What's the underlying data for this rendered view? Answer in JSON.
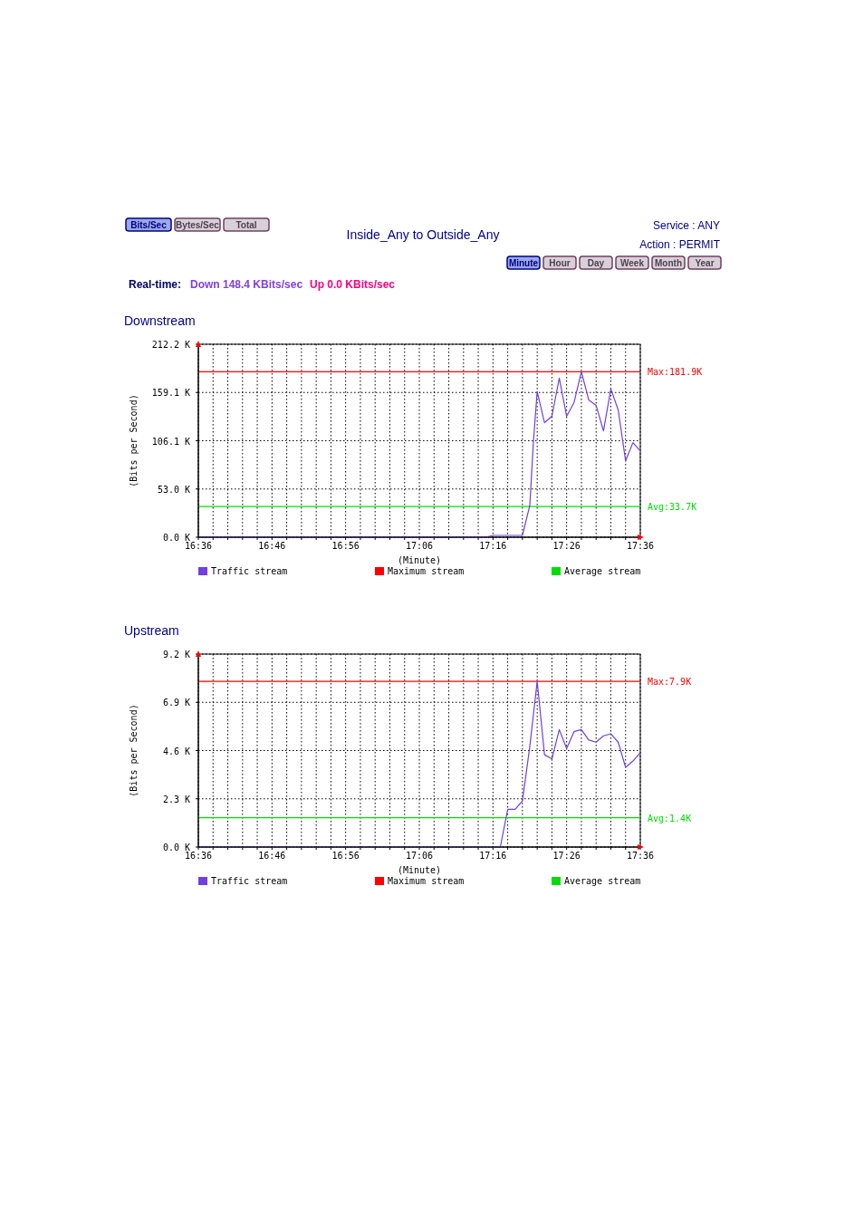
{
  "chart_data": [
    {
      "type": "other",
      "title": "Inside_Any to Outside_Any",
      "annotations": [
        "Bits/Sec",
        "Bytes/Sec",
        "Total",
        "Service : ANY",
        "Action : PERMIT",
        "Minute",
        "Hour",
        "Day",
        "Week",
        "Month",
        "Year",
        "Real-time:",
        "Down 148.4 KBits/sec",
        "Up 0.0 KBits/sec"
      ]
    },
    {
      "type": "line",
      "title": "Downstream",
      "xlabel": "(Minute)",
      "ylabel": "(Bits per Second)",
      "xlim": [
        16.6,
        17.6
      ],
      "ylim": [
        0,
        212.2
      ],
      "xticks": [
        {
          "value": 16.6,
          "label": "16:36"
        },
        {
          "value": 16.6333,
          "label": null
        },
        {
          "value": 16.6667,
          "label": null
        },
        {
          "value": 16.7,
          "label": null
        },
        {
          "value": 16.7333,
          "label": null
        },
        {
          "value": 16.7667,
          "label": "16:46"
        },
        {
          "value": 16.8,
          "label": null
        },
        {
          "value": 16.8333,
          "label": null
        },
        {
          "value": 16.8667,
          "label": null
        },
        {
          "value": 16.9,
          "label": null
        },
        {
          "value": 16.9333,
          "label": "16:56"
        },
        {
          "value": 16.9667,
          "label": null
        },
        {
          "value": 17.0,
          "label": null
        },
        {
          "value": 17.0333,
          "label": null
        },
        {
          "value": 17.0667,
          "label": null
        },
        {
          "value": 17.1,
          "label": "17:06"
        },
        {
          "value": 17.1333,
          "label": null
        },
        {
          "value": 17.1667,
          "label": null
        },
        {
          "value": 17.2,
          "label": null
        },
        {
          "value": 17.2333,
          "label": null
        },
        {
          "value": 17.2667,
          "label": "17:16"
        },
        {
          "value": 17.3,
          "label": null
        },
        {
          "value": 17.3333,
          "label": null
        },
        {
          "value": 17.3667,
          "label": null
        },
        {
          "value": 17.4,
          "label": null
        },
        {
          "value": 17.4333,
          "label": "17:26"
        },
        {
          "value": 17.4667,
          "label": null
        },
        {
          "value": 17.5,
          "label": null
        },
        {
          "value": 17.5333,
          "label": null
        },
        {
          "value": 17.5667,
          "label": null
        },
        {
          "value": 17.6,
          "label": "17:36"
        }
      ],
      "yticks": [
        {
          "value": 0,
          "label": "0.0 K"
        },
        {
          "value": 53.05,
          "label": "53.0 K"
        },
        {
          "value": 106.1,
          "label": "106.1 K"
        },
        {
          "value": 159.15,
          "label": "159.1 K"
        },
        {
          "value": 212.2,
          "label": "212.2 K"
        }
      ],
      "grid": true,
      "legend": "bottom",
      "marker": "none",
      "series": [
        {
          "name": "Traffic stream",
          "color": "#7040e0",
          "x": [
            16.6,
            17.25,
            17.2667,
            17.3333,
            17.35,
            17.3583,
            17.3667,
            17.3833,
            17.4,
            17.4167,
            17.4333,
            17.45,
            17.4667,
            17.4833,
            17.5,
            17.5167,
            17.5333,
            17.55,
            17.5667,
            17.5833,
            17.6
          ],
          "values": [
            0,
            0,
            2,
            2,
            35,
            106,
            160,
            126,
            133,
            175,
            133,
            148,
            181.9,
            151,
            145,
            117,
            163,
            140,
            84,
            104,
            95
          ]
        },
        {
          "name": "Maximum stream",
          "color": "#ff0000",
          "x": [
            16.6,
            17.6
          ],
          "values": [
            181.9,
            181.9
          ]
        },
        {
          "name": "Average stream",
          "color": "#00dd00",
          "x": [
            16.6,
            17.6
          ],
          "values": [
            33.7,
            33.7
          ]
        }
      ],
      "annotations": [
        "Max:181.9K",
        "Avg:33.7K"
      ]
    },
    {
      "type": "line",
      "title": "Upstream",
      "xlabel": "(Minute)",
      "ylabel": "(Bits per Second)",
      "xlim": [
        16.6,
        17.6
      ],
      "ylim": [
        0,
        9.2
      ],
      "xticks": [
        {
          "value": 16.6,
          "label": "16:36"
        },
        {
          "value": 16.6333,
          "label": null
        },
        {
          "value": 16.6667,
          "label": null
        },
        {
          "value": 16.7,
          "label": null
        },
        {
          "value": 16.7333,
          "label": null
        },
        {
          "value": 16.7667,
          "label": "16:46"
        },
        {
          "value": 16.8,
          "label": null
        },
        {
          "value": 16.8333,
          "label": null
        },
        {
          "value": 16.8667,
          "label": null
        },
        {
          "value": 16.9,
          "label": null
        },
        {
          "value": 16.9333,
          "label": "16:56"
        },
        {
          "value": 16.9667,
          "label": null
        },
        {
          "value": 17.0,
          "label": null
        },
        {
          "value": 17.0333,
          "label": null
        },
        {
          "value": 17.0667,
          "label": null
        },
        {
          "value": 17.1,
          "label": "17:06"
        },
        {
          "value": 17.1333,
          "label": null
        },
        {
          "value": 17.1667,
          "label": null
        },
        {
          "value": 17.2,
          "label": null
        },
        {
          "value": 17.2333,
          "label": null
        },
        {
          "value": 17.2667,
          "label": "17:16"
        },
        {
          "value": 17.3,
          "label": null
        },
        {
          "value": 17.3333,
          "label": null
        },
        {
          "value": 17.3667,
          "label": null
        },
        {
          "value": 17.4,
          "label": null
        },
        {
          "value": 17.4333,
          "label": "17:26"
        },
        {
          "value": 17.4667,
          "label": null
        },
        {
          "value": 17.5,
          "label": null
        },
        {
          "value": 17.5333,
          "label": null
        },
        {
          "value": 17.5667,
          "label": null
        },
        {
          "value": 17.6,
          "label": "17:36"
        }
      ],
      "yticks": [
        {
          "value": 0,
          "label": "0.0 K"
        },
        {
          "value": 2.3,
          "label": "2.3 K"
        },
        {
          "value": 4.6,
          "label": "4.6 K"
        },
        {
          "value": 6.9,
          "label": "6.9 K"
        },
        {
          "value": 9.2,
          "label": "9.2 K"
        }
      ],
      "grid": true,
      "legend": "bottom",
      "marker": "none",
      "series": [
        {
          "name": "Traffic stream",
          "color": "#7040e0",
          "x": [
            16.6,
            17.2833,
            17.3,
            17.3167,
            17.3333,
            17.35,
            17.3667,
            17.3833,
            17.4,
            17.4167,
            17.4333,
            17.45,
            17.4667,
            17.4833,
            17.5,
            17.5167,
            17.5333,
            17.55,
            17.5667,
            17.5833,
            17.6
          ],
          "values": [
            0,
            0,
            1.8,
            1.8,
            2.2,
            4.8,
            7.9,
            4.4,
            4.2,
            5.6,
            4.7,
            5.5,
            5.6,
            5.1,
            5.0,
            5.3,
            5.4,
            5.0,
            3.8,
            4.1,
            4.5
          ]
        },
        {
          "name": "Maximum stream",
          "color": "#ff0000",
          "x": [
            16.6,
            17.6
          ],
          "values": [
            7.9,
            7.9
          ]
        },
        {
          "name": "Average stream",
          "color": "#00dd00",
          "x": [
            16.6,
            17.6
          ],
          "values": [
            1.4,
            1.4
          ]
        }
      ],
      "annotations": [
        "Max:7.9K",
        "Avg:1.4K"
      ]
    }
  ]
}
